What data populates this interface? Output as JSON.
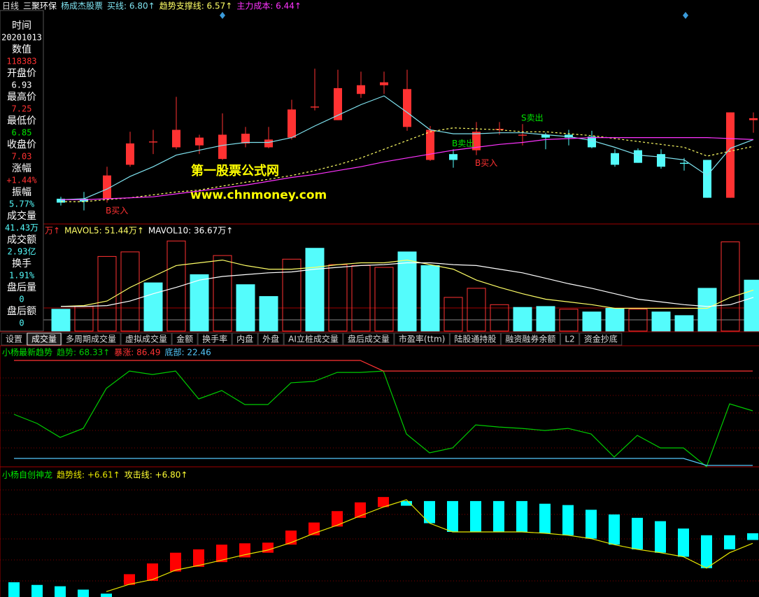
{
  "header": {
    "period": "日线",
    "stock": "三聚环保",
    "author": "杨成杰股票"
  },
  "info_panel": [
    {
      "label": "时间",
      "value": "20201013",
      "color": "#ffffff"
    },
    {
      "label": "数值",
      "value": "118383",
      "color": "#ff3232"
    },
    {
      "label": "开盘价",
      "value": "6.93",
      "color": "#ffffff"
    },
    {
      "label": "最高价",
      "value": "7.25",
      "color": "#ff3232"
    },
    {
      "label": "最低价",
      "value": "6.85",
      "color": "#00e600"
    },
    {
      "label": "收盘价",
      "value": "7.03",
      "color": "#ff3232"
    },
    {
      "label": "涨幅",
      "value": "+1.44%",
      "color": "#ff3232"
    },
    {
      "label": "振幅",
      "value": "5.77%",
      "color": "#54fcfc"
    },
    {
      "label": "成交量",
      "value": "41.43万",
      "color": "#54fcfc"
    },
    {
      "label": "成交额",
      "value": "2.93亿",
      "color": "#54fcfc"
    },
    {
      "label": "换手",
      "value": "1.91%",
      "color": "#54fcfc"
    },
    {
      "label": "盘后量",
      "value": "0",
      "color": "#54fcfc"
    },
    {
      "label": "盘后额",
      "value": "0",
      "color": "#54fcfc"
    }
  ],
  "tabs": [
    "设置",
    "成交量",
    "多周期成交量",
    "虚拟成交量",
    "金额",
    "换手率",
    "内盘",
    "外盘",
    "AI立桩成交量",
    "盘后成交量",
    "市盈率(ttm)",
    "陆股通持股",
    "融资融券余额",
    "L2",
    "资金抄底"
  ],
  "active_tab": 1,
  "watermark": [
    "第一股票公式网",
    "www.chnmoney.com"
  ],
  "chart_data": [
    {
      "type": "candlestick",
      "up_color": "#ff3232",
      "down_color": "#54fcfc",
      "ylim": [
        5.6,
        7.8
      ],
      "open": [
        5.86,
        5.86,
        5.86,
        6.21,
        6.44,
        6.39,
        6.41,
        6.27,
        6.43,
        6.39,
        6.49,
        6.8,
        6.67,
        6.94,
        7.03,
        6.6,
        6.26,
        6.32,
        6.36,
        6.57,
        6.51,
        6.52,
        6.52,
        6.5,
        6.33,
        6.36,
        6.32,
        6.23,
        6.26,
        5.87,
        6.67
      ],
      "high": [
        5.88,
        5.93,
        6.19,
        6.55,
        6.57,
        6.91,
        6.52,
        6.74,
        6.6,
        6.6,
        6.88,
        7.2,
        7.19,
        7.17,
        7.17,
        7.19,
        6.61,
        6.37,
        6.65,
        6.65,
        6.63,
        6.54,
        6.57,
        6.56,
        6.37,
        6.38,
        6.37,
        6.28,
        6.26,
        6.75,
        6.75
      ],
      "low": [
        5.79,
        5.74,
        5.82,
        6.19,
        6.32,
        6.37,
        6.32,
        6.26,
        6.39,
        6.38,
        6.47,
        6.77,
        6.67,
        6.9,
        6.94,
        6.56,
        6.25,
        6.18,
        6.31,
        6.52,
        6.41,
        6.37,
        6.41,
        6.38,
        6.19,
        6.23,
        6.17,
        6.15,
        5.87,
        5.87,
        6.54
      ],
      "close": [
        5.82,
        5.83,
        6.1,
        6.43,
        6.45,
        6.57,
        6.49,
        6.52,
        6.53,
        6.47,
        6.78,
        6.81,
        7.0,
        7.03,
        7.06,
        6.99,
        6.57,
        6.26,
        6.55,
        6.58,
        6.52,
        6.49,
        6.49,
        6.39,
        6.21,
        6.23,
        6.19,
        6.22,
        5.87,
        6.75,
        6.69
      ],
      "series": [
        {
          "name": "买线: 6.80↑",
          "color": "#7fe3f0",
          "dashed": false,
          "values": [
            5.85,
            5.86,
            5.96,
            6.09,
            6.19,
            6.31,
            6.36,
            6.41,
            6.44,
            6.44,
            6.49,
            6.61,
            6.72,
            6.83,
            6.92,
            6.75,
            6.57,
            6.53,
            6.53,
            6.54,
            6.54,
            6.52,
            6.5,
            6.46,
            6.39,
            6.31,
            6.29,
            6.26,
            6.1,
            6.38,
            6.47
          ]
        },
        {
          "name": "趋势支撑线: 6.57↑",
          "color": "#ffff66",
          "dashed": true,
          "values": [
            5.83,
            5.83,
            5.85,
            5.87,
            5.9,
            5.93,
            5.95,
            5.99,
            6.03,
            6.06,
            6.1,
            6.15,
            6.21,
            6.28,
            6.37,
            6.46,
            6.55,
            6.59,
            6.58,
            6.57,
            6.55,
            6.55,
            6.53,
            6.51,
            6.48,
            6.45,
            6.42,
            6.39,
            6.3,
            6.35,
            6.4
          ]
        },
        {
          "name": "主力成本: 6.44↑",
          "color": "#ff33ff",
          "dashed": false,
          "values": [
            5.85,
            5.85,
            5.86,
            5.87,
            5.88,
            5.91,
            5.94,
            5.97,
            6.0,
            6.04,
            6.08,
            6.11,
            6.15,
            6.19,
            6.24,
            6.28,
            6.32,
            6.36,
            6.39,
            6.42,
            6.44,
            6.47,
            6.48,
            6.49,
            6.49,
            6.49,
            6.49,
            6.49,
            6.49,
            6.48,
            6.47
          ]
        }
      ],
      "annotations": [
        {
          "text": "B买入",
          "index": 2,
          "color": "#ff3232"
        },
        {
          "text": "B卖出",
          "index": 17,
          "color": "#00e600"
        },
        {
          "text": "B买入",
          "index": 18,
          "color": "#ff3232"
        },
        {
          "text": "S卖出",
          "index": 20,
          "color": "#00e600"
        }
      ]
    },
    {
      "type": "bar",
      "title": "万↑",
      "ylim": [
        0,
        100
      ],
      "hollow_color": "#ff3232",
      "values": [
        24,
        27,
        82,
        87,
        53,
        99,
        62,
        83,
        51,
        38,
        79,
        91,
        73,
        72,
        70,
        87,
        72,
        37,
        47,
        29,
        26,
        27,
        24,
        21,
        25,
        24,
        21,
        17,
        47,
        98,
        56
      ],
      "colors": [
        "#54fcfc",
        "#ff3232",
        "#ff3232",
        "#ff3232",
        "#54fcfc",
        "#ff3232",
        "#54fcfc",
        "#ff3232",
        "#54fcfc",
        "#54fcfc",
        "#ff3232",
        "#54fcfc",
        "#ff3232",
        "#ff3232",
        "#ff3232",
        "#54fcfc",
        "#54fcfc",
        "#ff3232",
        "#ff3232",
        "#ff3232",
        "#54fcfc",
        "#54fcfc",
        "#ff3232",
        "#54fcfc",
        "#54fcfc",
        "#ff3232",
        "#54fcfc",
        "#54fcfc",
        "#54fcfc",
        "#ff3232",
        "#54fcfc"
      ],
      "series": [
        {
          "name": "MAVOL5: 51.44万↑",
          "color": "#ffff66",
          "values": [
            27,
            28,
            33,
            48,
            60,
            72,
            75,
            78,
            72,
            68,
            68,
            70,
            73,
            75,
            75,
            78,
            73,
            68,
            56,
            48,
            41,
            35,
            32,
            29,
            25,
            25,
            25,
            25,
            25,
            37,
            45
          ]
        },
        {
          "name": "MAVOL10: 36.67万↑",
          "color": "#ffffff",
          "values": [
            27,
            27,
            28,
            33,
            41,
            48,
            56,
            60,
            62,
            64,
            65,
            68,
            70,
            72,
            73,
            75,
            75,
            73,
            72,
            68,
            64,
            58,
            52,
            47,
            41,
            35,
            32,
            29,
            27,
            29,
            37
          ]
        }
      ]
    },
    {
      "type": "line",
      "title": "小杨最新趋势",
      "title_color": "#00e600",
      "ylim": [
        0,
        100
      ],
      "series": [
        {
          "name": "趋势: 68.33↑",
          "color": "#00cc00",
          "values": [
            43.7,
            35.9,
            24.0,
            31.7,
            65.9,
            80.8,
            77.8,
            80.8,
            56.9,
            64.1,
            52.1,
            52.1,
            70.7,
            71.9,
            79.6,
            79.6,
            80.8,
            26.9,
            10.8,
            15.0,
            34.7,
            32.9,
            31.7,
            29.9,
            31.7,
            26.9,
            7.2,
            25.7,
            15.0,
            15.0,
            -1.0,
            52.7,
            46.7
          ]
        },
        {
          "name": "暴涨: 86.49",
          "color": "#ff3232",
          "values": [
            89.8,
            89.8,
            89.8,
            89.8,
            89.8,
            89.8,
            89.8,
            89.8,
            89.8,
            89.8,
            89.8,
            89.8,
            89.8,
            89.8,
            89.8,
            89.8,
            80.8,
            80.8,
            80.8,
            80.8,
            80.8,
            80.8,
            80.8,
            80.8,
            80.8,
            80.8,
            80.8,
            80.8,
            80.8,
            80.8,
            80.8,
            80.8,
            80.8
          ]
        },
        {
          "name": "底部: 22.46",
          "color": "#54c8fc",
          "values": [
            6,
            6,
            6,
            6,
            6,
            6,
            6,
            6,
            6,
            6,
            6,
            6,
            6,
            6,
            6,
            6,
            6,
            6,
            6,
            6,
            6,
            6,
            6,
            6,
            6,
            6,
            6,
            6,
            6,
            6,
            0,
            0,
            0
          ]
        }
      ]
    },
    {
      "type": "floating_bar",
      "title": "小杨自创神龙",
      "title_color": "#00e600",
      "ylim": [
        5.6,
        7.3
      ],
      "up_color": "#ff0000",
      "down_color": "#00ffff",
      "open": [
        5.82,
        5.78,
        5.76,
        5.71,
        5.65,
        5.78,
        5.84,
        5.98,
        6.05,
        6.12,
        6.19,
        6.26,
        6.38,
        6.52,
        6.65,
        6.78,
        6.94,
        7.03,
        7.03,
        7.03,
        7.03,
        7.03,
        7.03,
        6.99,
        6.97,
        6.9,
        6.83,
        6.78,
        6.73,
        6.62,
        6.52,
        6.52,
        6.55
      ],
      "close": [
        5.6,
        5.6,
        5.6,
        5.6,
        5.6,
        5.94,
        6.1,
        6.26,
        6.31,
        6.38,
        6.4,
        6.41,
        6.59,
        6.71,
        6.88,
        7.01,
        7.09,
        6.96,
        6.7,
        6.57,
        6.57,
        6.57,
        6.57,
        6.55,
        6.52,
        6.47,
        6.38,
        6.31,
        6.26,
        6.2,
        6.03,
        6.31,
        6.45
      ],
      "series": [
        {
          "name": "趋势线: +6.61↑",
          "color": "#e6e600",
          "values": [
            null,
            null,
            null,
            null,
            5.68,
            5.79,
            5.86,
            6.0,
            6.07,
            6.15,
            6.23,
            6.3,
            6.41,
            6.55,
            6.67,
            6.81,
            6.94,
            7.05,
            6.7,
            6.57,
            6.57,
            6.57,
            6.57,
            6.55,
            6.52,
            6.47,
            6.38,
            6.31,
            6.26,
            6.2,
            6.03,
            6.26,
            6.4
          ]
        }
      ],
      "extra_label": "攻击线: +6.80↑",
      "extra_color": "#ffff33"
    }
  ]
}
